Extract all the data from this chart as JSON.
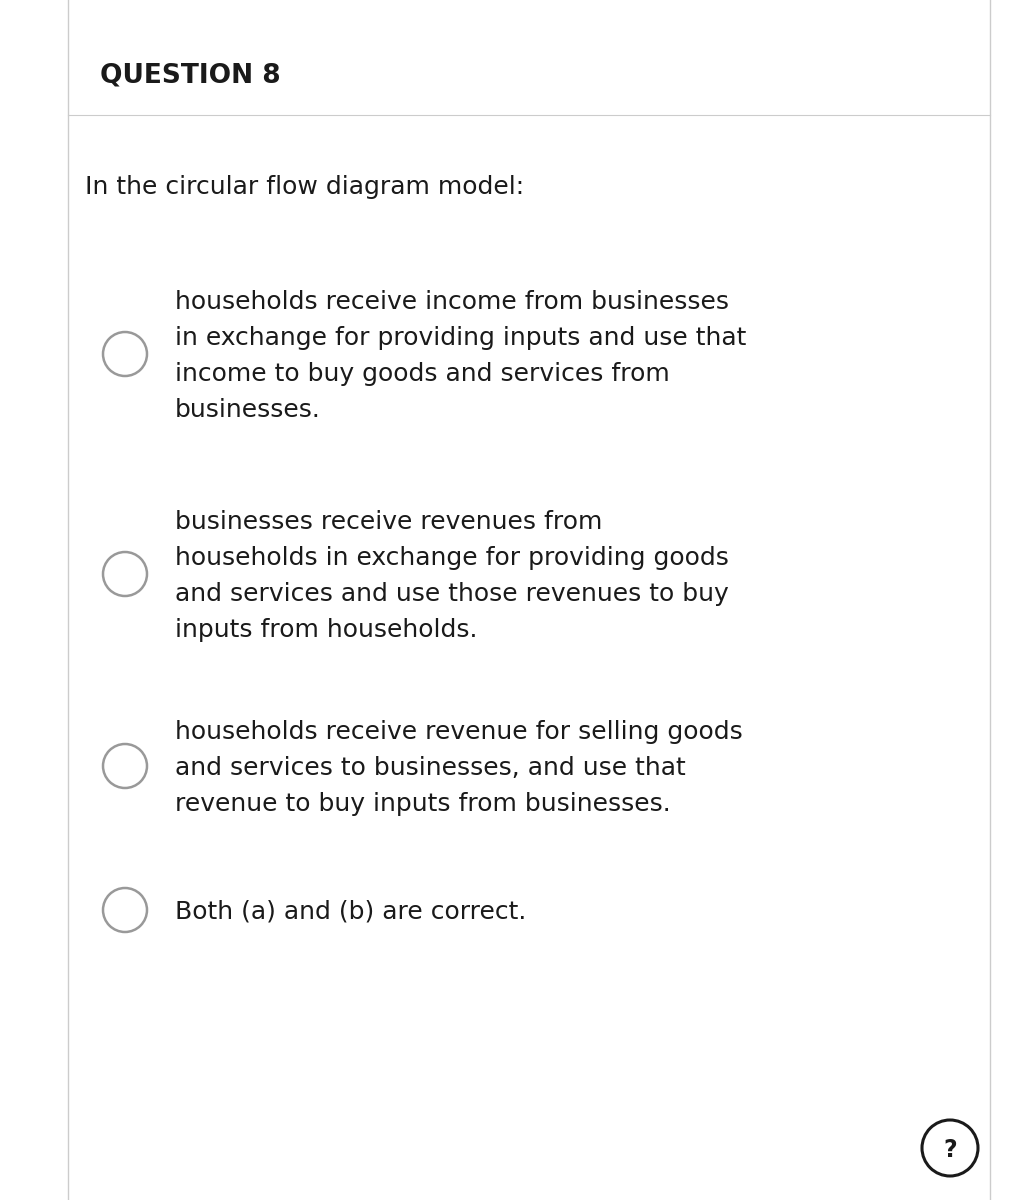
{
  "title": "QUESTION 8",
  "question_text": "In the circular flow diagram model:",
  "options": [
    {
      "lines": [
        "households receive income from businesses",
        "in exchange for providing inputs and use that",
        "income to buy goods and services from",
        "businesses."
      ]
    },
    {
      "lines": [
        "businesses receive revenues from",
        "households in exchange for providing goods",
        "and services and use those revenues to buy",
        "inputs from households."
      ]
    },
    {
      "lines": [
        "households receive revenue for selling goods",
        "and services to businesses, and use that",
        "revenue to buy inputs from businesses."
      ]
    },
    {
      "lines": [
        "Both (a) and (b) are correct."
      ]
    }
  ],
  "bg_color": "#ffffff",
  "border_color": "#cccccc",
  "text_color": "#1a1a1a",
  "circle_edge_color": "#999999",
  "title_fontsize": 19,
  "question_fontsize": 18,
  "option_fontsize": 18,
  "font_family": "DejaVu Sans"
}
